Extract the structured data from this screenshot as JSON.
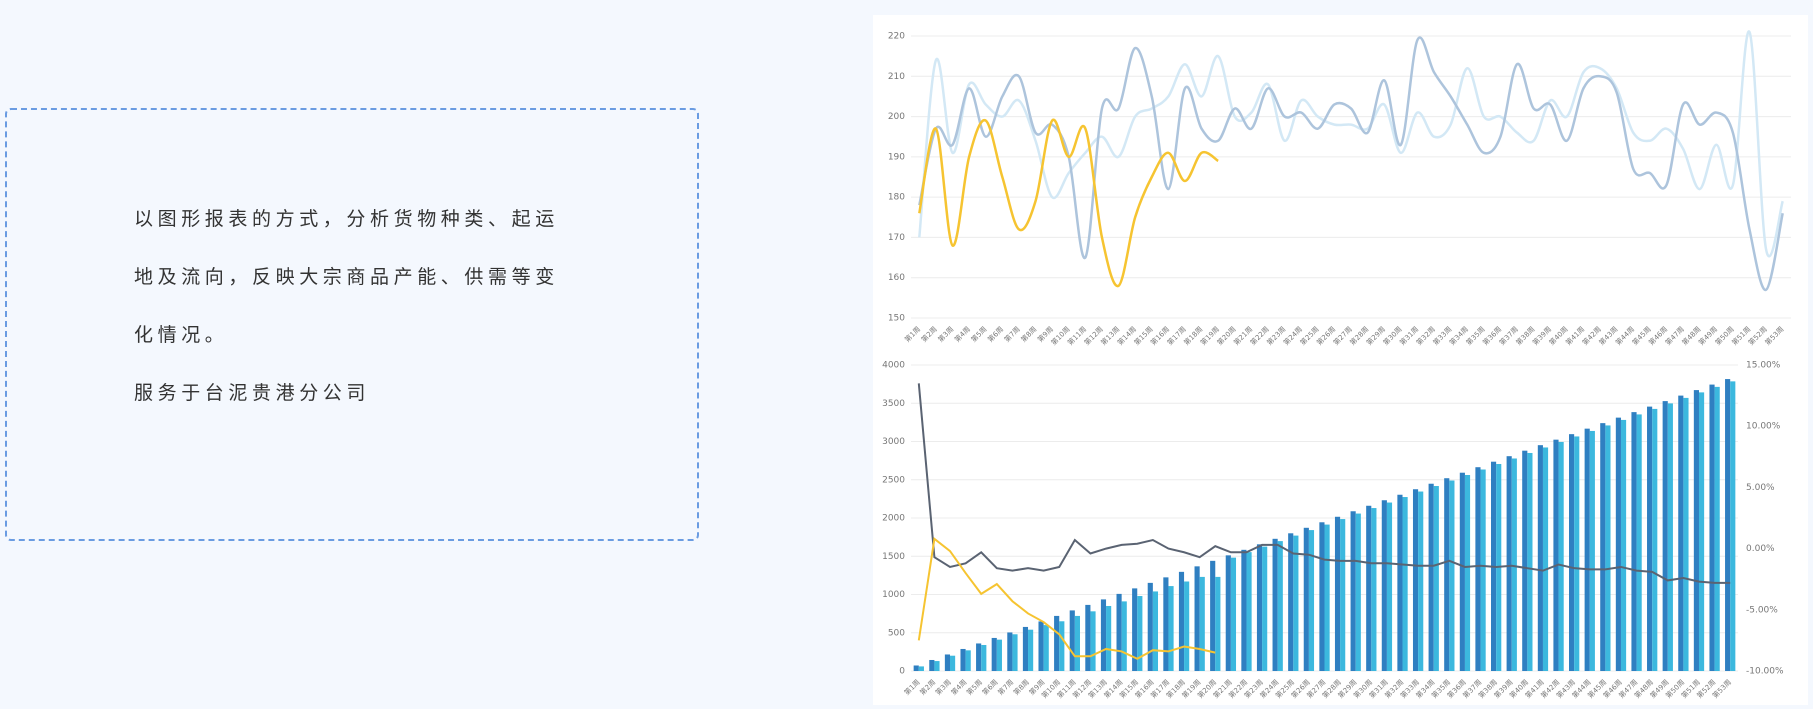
{
  "text": {
    "paragraphs": [
      "以图形报表的方式，分析货物种类、起运地及流向，反映大宗商品产能、供需等变化情况。",
      "服务于台泥贵港分公司"
    ]
  },
  "chart_data": [
    {
      "type": "line",
      "categories": [
        "第1周",
        "第2周",
        "第3周",
        "第4周",
        "第5周",
        "第6周",
        "第7周",
        "第8周",
        "第9周",
        "第10周",
        "第11周",
        "第12周",
        "第13周",
        "第14周",
        "第15周",
        "第16周",
        "第17周",
        "第18周",
        "第19周",
        "第20周",
        "第21周",
        "第22周",
        "第23周",
        "第24周",
        "第25周",
        "第26周",
        "第27周",
        "第28周",
        "第29周",
        "第30周",
        "第31周",
        "第32周",
        "第33周",
        "第34周",
        "第35周",
        "第36周",
        "第37周",
        "第38周",
        "第39周",
        "第40周",
        "第41周",
        "第42周",
        "第43周",
        "第44周",
        "第45周",
        "第46周",
        "第47周",
        "第48周",
        "第49周",
        "第50周",
        "第51周",
        "第52周",
        "第53周"
      ],
      "ylim": [
        150,
        220
      ],
      "yticks": [
        150,
        160,
        170,
        180,
        190,
        200,
        210,
        220
      ],
      "grid": true,
      "series": [
        {
          "color": "#d3e8f5",
          "values": [
            170,
            214,
            191,
            208,
            203,
            200,
            204,
            194,
            180,
            186,
            191,
            195,
            190,
            200,
            202,
            205,
            213,
            205,
            215,
            200,
            201,
            208,
            194,
            204,
            200,
            198,
            198,
            197,
            203,
            191,
            201,
            195,
            198,
            212,
            200,
            200,
            196,
            194,
            204,
            200,
            211,
            212,
            207,
            196,
            194,
            197,
            192,
            182,
            193,
            183,
            221,
            167,
            179
          ]
        },
        {
          "color": "#adc4dc",
          "values": [
            178,
            197,
            193,
            207,
            195,
            205,
            210,
            196,
            198,
            190,
            165,
            202,
            202,
            217,
            205,
            182,
            207,
            197,
            194,
            202,
            197,
            207,
            200,
            201,
            197,
            203,
            202,
            196,
            209,
            193,
            219,
            211,
            205,
            198,
            191,
            195,
            213,
            202,
            203,
            194,
            207,
            210,
            206,
            187,
            186,
            183,
            203,
            198,
            201,
            196,
            172,
            157,
            176
          ]
        },
        {
          "color": "#f6c431",
          "values": [
            176,
            197,
            168,
            190,
            199,
            185,
            172,
            179,
            199,
            190,
            197,
            170,
            158,
            175,
            185,
            191,
            184,
            191,
            189,
            null,
            null,
            null,
            null,
            null,
            null,
            null,
            null,
            null,
            null,
            null,
            null,
            null,
            null,
            null,
            null,
            null,
            null,
            null,
            null,
            null,
            null,
            null,
            null,
            null,
            null,
            null,
            null,
            null,
            null,
            null,
            null,
            null,
            null
          ]
        }
      ]
    },
    {
      "type": "bar",
      "categories": [
        "第1周",
        "第2周",
        "第3周",
        "第4周",
        "第5周",
        "第6周",
        "第7周",
        "第8周",
        "第9周",
        "第10周",
        "第11周",
        "第12周",
        "第13周",
        "第14周",
        "第15周",
        "第16周",
        "第17周",
        "第18周",
        "第19周",
        "第20周",
        "第21周",
        "第22周",
        "第23周",
        "第24周",
        "第25周",
        "第26周",
        "第27周",
        "第28周",
        "第29周",
        "第30周",
        "第31周",
        "第32周",
        "第33周",
        "第34周",
        "第35周",
        "第36周",
        "第37周",
        "第38周",
        "第39周",
        "第40周",
        "第41周",
        "第42周",
        "第43周",
        "第44周",
        "第45周",
        "第46周",
        "第47周",
        "第48周",
        "第49周",
        "第50周",
        "第51周",
        "第52周",
        "第53周"
      ],
      "ylim": [
        0,
        4000
      ],
      "yticks": [
        0,
        500,
        1000,
        1500,
        2000,
        2500,
        3000,
        3500,
        4000
      ],
      "y2lim": [
        -10,
        15
      ],
      "y2ticks": [
        {
          "value": -10,
          "label": "-10.00%"
        },
        {
          "value": -5,
          "label": "-5.00%"
        },
        {
          "value": 0,
          "label": "0.00%"
        },
        {
          "value": 5,
          "label": "5.00%"
        },
        {
          "value": 10,
          "label": "10.00%"
        },
        {
          "value": 15,
          "label": "15.00%"
        }
      ],
      "grid": true,
      "series": [
        {
          "type": "bar",
          "color": "#2f7fc1",
          "values": [
            72,
            144,
            216,
            288,
            360,
            432,
            504,
            576,
            648,
            720,
            792,
            864,
            936,
            1008,
            1080,
            1152,
            1224,
            1296,
            1368,
            1440,
            1512,
            1584,
            1656,
            1728,
            1800,
            1872,
            1944,
            2016,
            2088,
            2160,
            2232,
            2304,
            2376,
            2448,
            2520,
            2592,
            2664,
            2736,
            2808,
            2880,
            2952,
            3024,
            3096,
            3168,
            3240,
            3312,
            3384,
            3456,
            3528,
            3600,
            3672,
            3744,
            3816
          ]
        },
        {
          "type": "bar",
          "color": "#3cb8de",
          "values": [
            60,
            130,
            200,
            270,
            340,
            410,
            480,
            540,
            600,
            650,
            720,
            780,
            850,
            910,
            980,
            1040,
            1110,
            1170,
            1230,
            1230,
            1482,
            1554,
            1626,
            1698,
            1770,
            1842,
            1914,
            1986,
            2058,
            2130,
            2202,
            2274,
            2346,
            2418,
            2490,
            2562,
            2634,
            2706,
            2778,
            2850,
            2922,
            2994,
            3066,
            3138,
            3210,
            3282,
            3354,
            3426,
            3498,
            3570,
            3642,
            3714,
            3786
          ]
        },
        {
          "type": "line",
          "axis": "y2",
          "color": "#5a6372",
          "values": [
            13.5,
            -0.7,
            -1.5,
            -1.2,
            -0.3,
            -1.6,
            -1.8,
            -1.6,
            -1.8,
            -1.5,
            0.7,
            -0.4,
            0.0,
            0.3,
            0.4,
            0.7,
            0.0,
            -0.3,
            -0.7,
            0.2,
            -0.3,
            -0.3,
            0.3,
            0.3,
            -0.4,
            -0.5,
            -0.9,
            -1.0,
            -1.0,
            -1.2,
            -1.2,
            -1.3,
            -1.4,
            -1.4,
            -1.0,
            -1.5,
            -1.4,
            -1.5,
            -1.4,
            -1.6,
            -1.8,
            -1.3,
            -1.6,
            -1.7,
            -1.7,
            -1.5,
            -1.8,
            -1.9,
            -2.6,
            -2.4,
            -2.7,
            -2.8,
            -2.8
          ]
        },
        {
          "type": "line",
          "axis": "y2",
          "color": "#f6c431",
          "values": [
            -7.5,
            0.8,
            -0.2,
            -2.0,
            -3.7,
            -2.9,
            -4.3,
            -5.3,
            -6.0,
            -7.0,
            -8.8,
            -8.8,
            -8.2,
            -8.4,
            -9.0,
            -8.3,
            -8.4,
            -8.0,
            -8.2,
            -8.5,
            null,
            null,
            null,
            null,
            null,
            null,
            null,
            null,
            null,
            null,
            null,
            null,
            null,
            null,
            null,
            null,
            null,
            null,
            null,
            null,
            null,
            null,
            null,
            null,
            null,
            null,
            null,
            null,
            null,
            null,
            null,
            null,
            null
          ]
        }
      ]
    }
  ]
}
